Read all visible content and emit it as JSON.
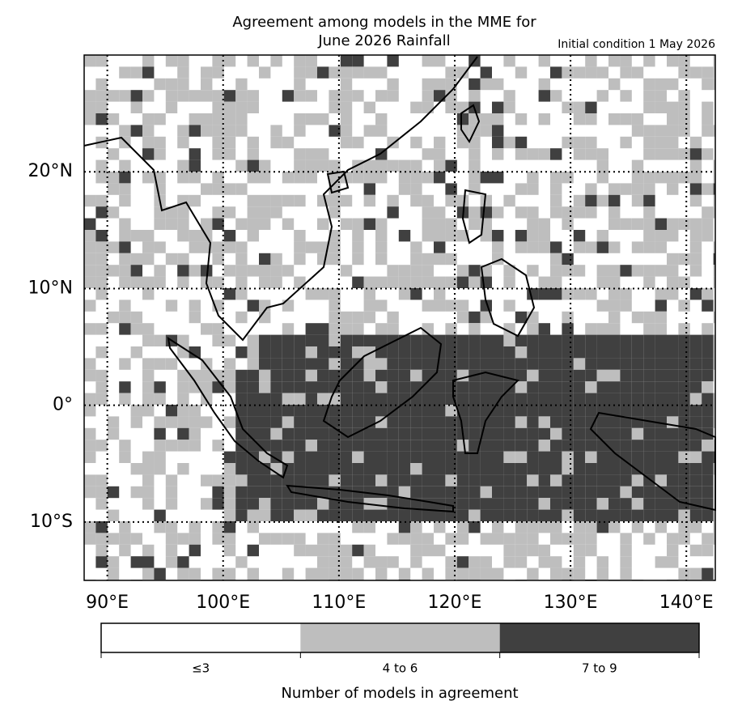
{
  "title": [
    "Agreement among models in the MME for",
    "June 2026  Rainfall"
  ],
  "subtitle": "Initial condition 1 May 2026",
  "map": {
    "xlim": [
      88,
      142.5
    ],
    "ylim": [
      -15,
      30
    ],
    "xticks": [
      {
        "value": 90,
        "label": "90°E"
      },
      {
        "value": 100,
        "label": "100°E"
      },
      {
        "value": 110,
        "label": "110°E"
      },
      {
        "value": 120,
        "label": "120°E"
      },
      {
        "value": 130,
        "label": "130°E"
      },
      {
        "value": 140,
        "label": "140°E"
      }
    ],
    "yticks": [
      {
        "value": 20,
        "label": "20°N"
      },
      {
        "value": 10,
        "label": "10°N"
      },
      {
        "value": 0,
        "label": "0°"
      },
      {
        "value": -10,
        "label": "10°S"
      }
    ]
  },
  "colorbar": {
    "title": "Number of models in agreement",
    "categories": [
      "≤3",
      "4 to 6",
      "7 to 9"
    ],
    "colors": [
      "#ffffff",
      "#bebebe",
      "#404040"
    ]
  }
}
